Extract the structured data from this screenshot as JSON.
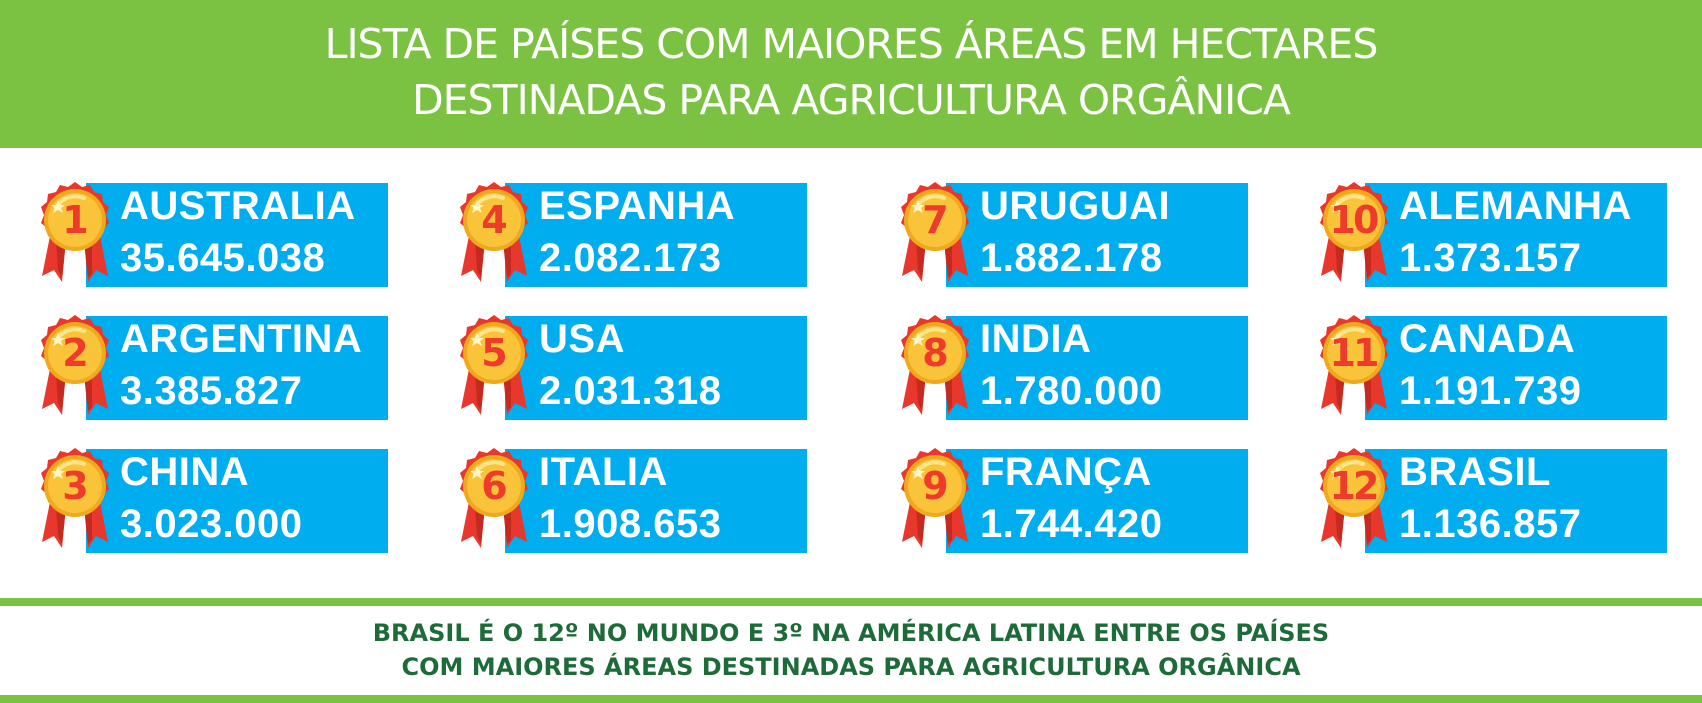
{
  "header": {
    "title_line1": "LISTA DE PAÍSES COM MAIORES ÁREAS EM HECTARES",
    "title_line2": "DESTINADAS PARA AGRICULTURA ORGÂNICA"
  },
  "colors": {
    "green": "#7cc242",
    "blue": "#00adef",
    "medal_gold": "#f9c33a",
    "medal_red": "#e8372c",
    "footer_text": "#1e6b3a"
  },
  "rankings": [
    {
      "rank": "1",
      "country": "AUSTRALIA",
      "hectares": "35.645.038"
    },
    {
      "rank": "2",
      "country": "ARGENTINA",
      "hectares": "3.385.827"
    },
    {
      "rank": "3",
      "country": "CHINA",
      "hectares": "3.023.000"
    },
    {
      "rank": "4",
      "country": "ESPANHA",
      "hectares": "2.082.173"
    },
    {
      "rank": "5",
      "country": "USA",
      "hectares": "2.031.318"
    },
    {
      "rank": "6",
      "country": "ITALIA",
      "hectares": "1.908.653"
    },
    {
      "rank": "7",
      "country": "URUGUAI",
      "hectares": "1.882.178"
    },
    {
      "rank": "8",
      "country": "INDIA",
      "hectares": "1.780.000"
    },
    {
      "rank": "9",
      "country": "FRANÇA",
      "hectares": "1.744.420"
    },
    {
      "rank": "10",
      "country": "ALEMANHA",
      "hectares": "1.373.157"
    },
    {
      "rank": "11",
      "country": "CANADA",
      "hectares": "1.191.739"
    },
    {
      "rank": "12",
      "country": "BRASIL",
      "hectares": "1.136.857"
    }
  ],
  "footer": {
    "line1": "BRASIL É O 12º NO MUNDO E 3º NA AMÉRICA LATINA ENTRE OS PAÍSES",
    "line2": "COM MAIORES ÁREAS DESTINADAS PARA AGRICULTURA ORGÂNICA"
  }
}
